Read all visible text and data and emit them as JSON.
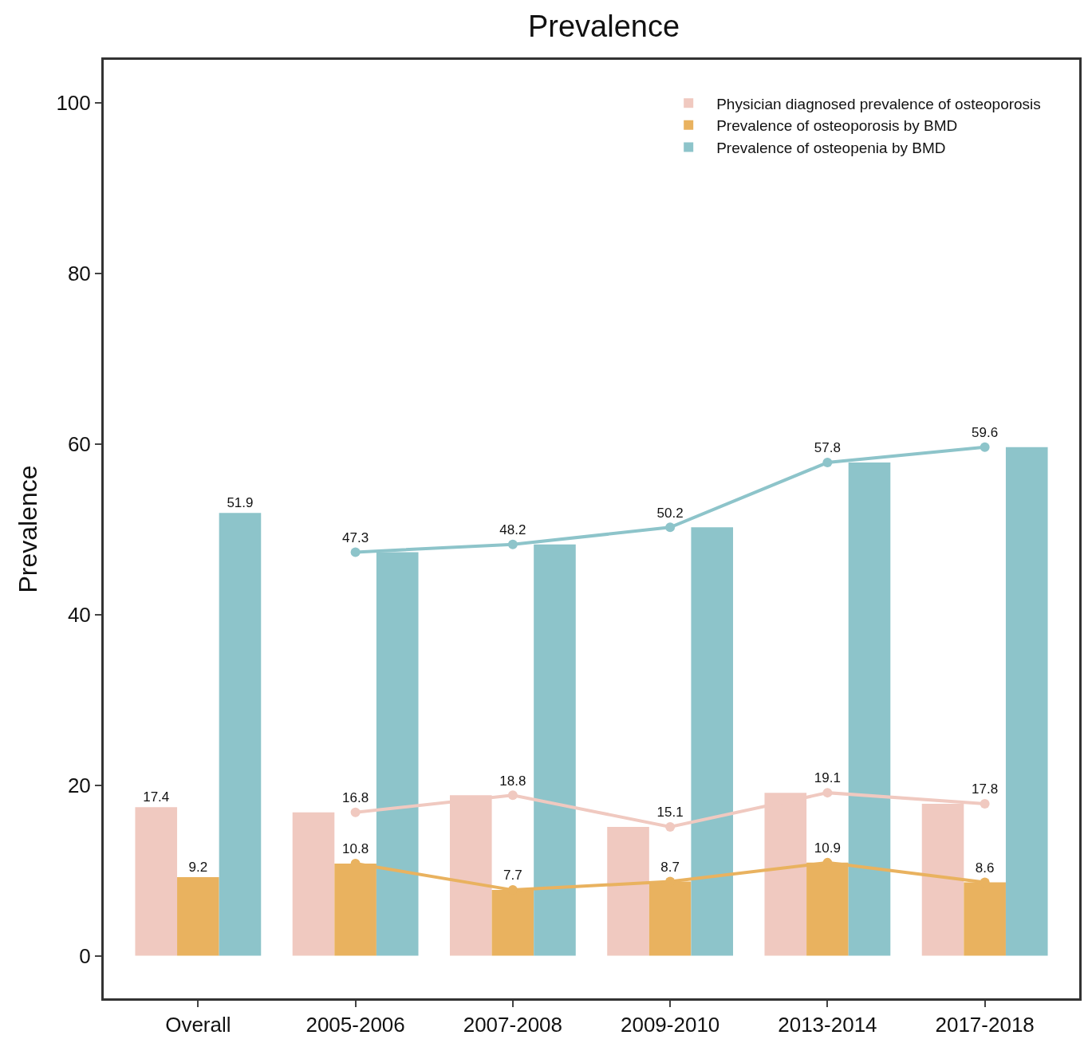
{
  "chart_data": {
    "type": "bar",
    "title": "Prevalence",
    "ylabel": "Prevalence",
    "categories": [
      "Overall",
      "2005-2006",
      "2007-2008",
      "2009-2010",
      "2013-2014",
      "2017-2018"
    ],
    "series": [
      {
        "name": "Physician diagnosed prevalence of osteoporosis",
        "color": "#f0c9c0",
        "values": [
          17.4,
          16.8,
          18.8,
          15.1,
          19.1,
          17.8
        ],
        "value_labels": [
          "17.4",
          null,
          null,
          null,
          null,
          null
        ]
      },
      {
        "name": "Prevalence of osteoporosis by BMD",
        "color": "#e9b25f",
        "values": [
          9.2,
          10.8,
          7.7,
          8.7,
          10.9,
          8.6
        ],
        "value_labels": [
          "9.2",
          null,
          null,
          null,
          null,
          null
        ]
      },
      {
        "name": "Prevalence of osteopenia by BMD",
        "color": "#8dc4ca",
        "values": [
          51.9,
          47.3,
          48.2,
          50.2,
          57.8,
          59.6
        ],
        "value_labels": [
          "51.9",
          null,
          null,
          null,
          null,
          null
        ]
      },
      {
        "type": "line",
        "marker": "circle",
        "color": "#f0c9c0",
        "values": [
          null,
          16.8,
          18.8,
          15.1,
          19.1,
          17.8
        ],
        "value_labels": [
          null,
          "16.8",
          "18.8",
          "15.1",
          "19.1",
          "17.8"
        ]
      },
      {
        "type": "line",
        "marker": "circle",
        "color": "#e9b25f",
        "values": [
          null,
          10.8,
          7.7,
          8.7,
          10.9,
          8.6
        ],
        "value_labels": [
          null,
          "10.8",
          "7.7",
          "8.7",
          "10.9",
          "8.6"
        ]
      },
      {
        "type": "line",
        "marker": "circle",
        "color": "#8dc4ca",
        "values": [
          null,
          47.3,
          48.2,
          50.2,
          57.8,
          59.6
        ],
        "value_labels": [
          null,
          "47.3",
          "48.2",
          "50.2",
          "57.8",
          "59.6"
        ]
      }
    ],
    "ylim": [
      -5,
      105
    ],
    "yticks": [
      0,
      20,
      40,
      60,
      80,
      100
    ],
    "legend": "top right"
  }
}
